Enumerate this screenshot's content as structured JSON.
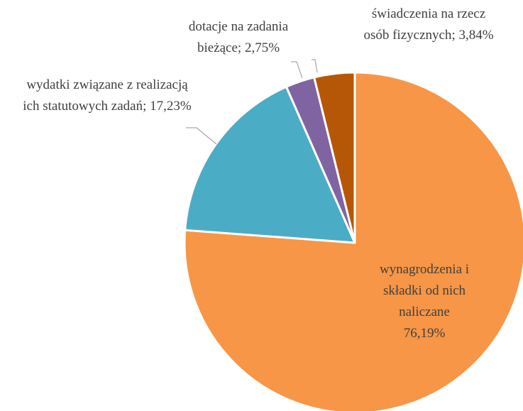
{
  "chart_data": {
    "type": "pie",
    "categories": [
      "wynagrodzenia i składki od nich naliczane",
      "wydatki związane z realizacją ich statutowych zadań",
      "dotacje na zadania bieżące",
      "świadczenia na rzecz osób fizycznych"
    ],
    "values": [
      76.19,
      17.23,
      2.75,
      3.84
    ],
    "value_labels": [
      "76,19%",
      "17,23%",
      "2,75%",
      "3,84%"
    ],
    "label_separator": "; ",
    "colors": [
      "#f79646",
      "#4bacc6",
      "#8064a2",
      "#b65708"
    ]
  }
}
